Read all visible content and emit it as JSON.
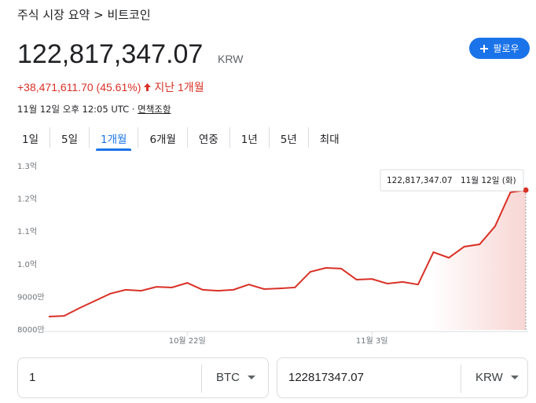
{
  "breadcrumb": "주식 시장 요약 > 비트코인",
  "follow_button": "팔로우",
  "price": {
    "value": "122,817,347.07",
    "currency": "KRW"
  },
  "change": {
    "amount": "+38,471,611.70 (45.61%)",
    "period": "지난 1개월"
  },
  "timestamp": "11월 12일 오후 12:05 UTC",
  "disclaimer": "면책조항",
  "tabs": [
    "1일",
    "5일",
    "1개월",
    "6개월",
    "연중",
    "1년",
    "5년",
    "최대"
  ],
  "selected_tab": 2,
  "chart_data": {
    "type": "line",
    "color": "#d93025",
    "categories": [
      null,
      null,
      null,
      null,
      null,
      null,
      null,
      null,
      null,
      "10월 22일",
      null,
      null,
      null,
      null,
      null,
      null,
      null,
      null,
      null,
      null,
      null,
      "11월 3일",
      null,
      null,
      null,
      null,
      null,
      null,
      null,
      null,
      null,
      null
    ],
    "values": [
      84100000,
      84300000,
      86700000,
      88900000,
      91100000,
      92300000,
      92000000,
      93200000,
      93000000,
      94400000,
      92300000,
      92000000,
      92300000,
      93900000,
      92500000,
      92700000,
      93000000,
      97800000,
      99000000,
      98800000,
      95400000,
      95600000,
      94200000,
      94700000,
      93900000,
      103800000,
      102100000,
      105500000,
      106200000,
      111700000,
      122100000,
      122817347.07
    ],
    "ylim": [
      80000000,
      131700000
    ],
    "yticks": [
      {
        "value": 80000000,
        "label": "8000만"
      },
      {
        "value": 90000000,
        "label": "9000만"
      },
      {
        "value": 100000000,
        "label": "1.0억"
      },
      {
        "value": 110000000,
        "label": "1.1억"
      },
      {
        "value": 120000000,
        "label": "1.2억"
      },
      {
        "value": 130000000,
        "label": "1.3억"
      }
    ],
    "grid": false,
    "tooltip": {
      "value": "122,817,347.07",
      "date": "11월 12일 (화)"
    }
  },
  "converter": {
    "from": {
      "amount": "1",
      "currency": "BTC"
    },
    "to": {
      "amount": "122817347.07",
      "currency": "KRW"
    }
  }
}
